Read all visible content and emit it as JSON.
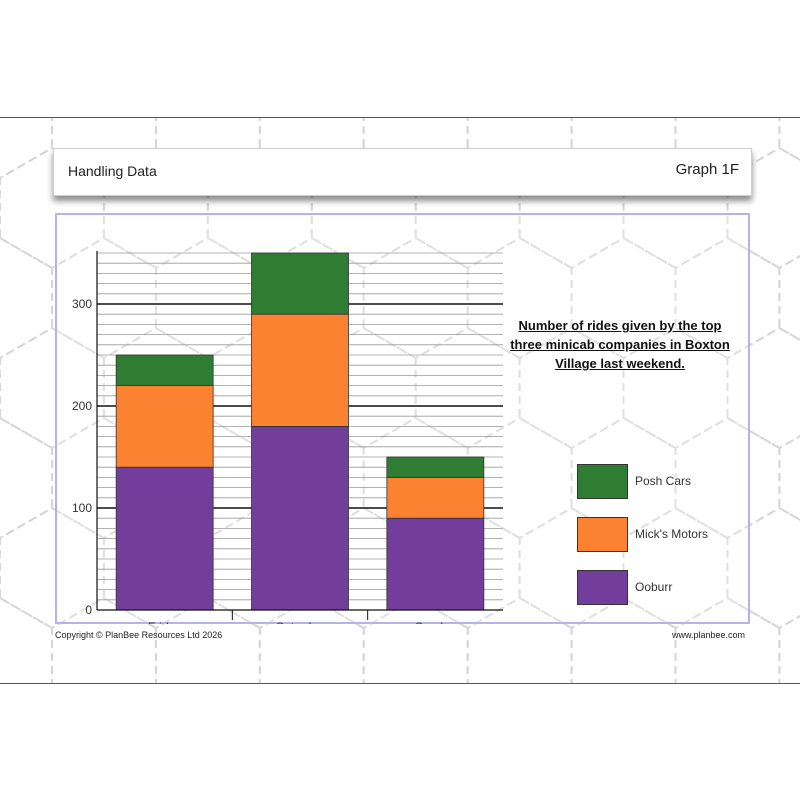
{
  "header": {
    "title": "Handling Data",
    "graph_label": "Graph 1F"
  },
  "footer": {
    "copyright": "Copyright © PlanBee Resources Ltd 2026",
    "website": "www.planbee.com"
  },
  "colors": {
    "posh_cars": "#2e7d32",
    "micks_motors": "#fa8230",
    "ooburr": "#733e9b",
    "frame": "#b7b2ee"
  },
  "chart_data": {
    "type": "bar",
    "stacked": true,
    "title": "Number of rides given by the top three minicab companies in Boxton Village last weekend.",
    "categories": [
      "Friday",
      "Saturday",
      "Sunday"
    ],
    "series": [
      {
        "name": "Ooburr",
        "values": [
          140,
          180,
          90
        ]
      },
      {
        "name": "Mick's Motors",
        "values": [
          80,
          110,
          40
        ]
      },
      {
        "name": "Posh Cars",
        "values": [
          30,
          60,
          20
        ]
      }
    ],
    "ylim": [
      0,
      350
    ],
    "yticks": [
      "0",
      "100",
      "200",
      "300"
    ],
    "legend_position": "right",
    "grid": true
  }
}
